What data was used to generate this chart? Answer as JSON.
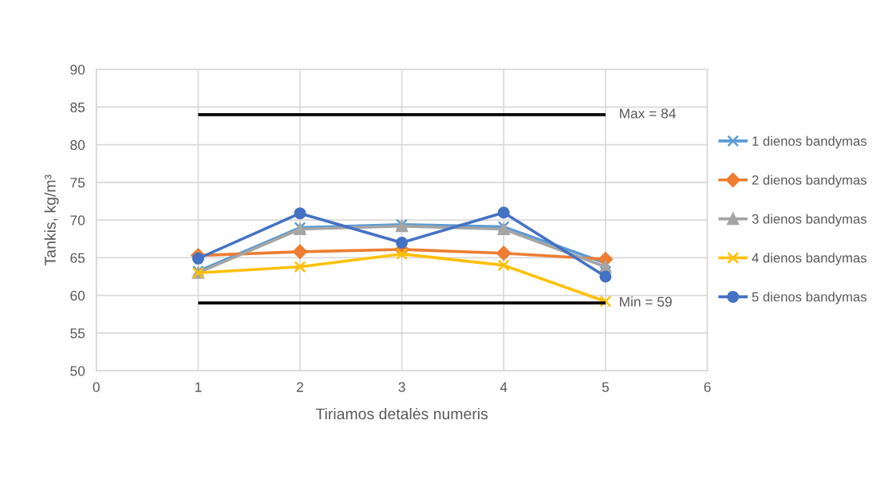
{
  "chart_data": {
    "type": "line",
    "xlabel": "Tiriamos detalės numeris",
    "ylabel": "Tankis, kg/m³",
    "x": [
      1,
      2,
      3,
      4,
      5
    ],
    "xlim": [
      0,
      6
    ],
    "xticks": [
      0,
      1,
      2,
      3,
      4,
      5,
      6
    ],
    "ylim": [
      50,
      90
    ],
    "yticks": [
      50,
      55,
      60,
      65,
      70,
      75,
      80,
      85,
      90
    ],
    "grid": true,
    "legend": "right",
    "line_style": "solid",
    "series": [
      {
        "name": "1 dienos bandymas",
        "color": "#5b9bd5",
        "marker": "cross",
        "values": [
          63.2,
          69.0,
          69.4,
          69.1,
          64.3
        ]
      },
      {
        "name": "2 dienos bandymas",
        "color": "#ed7d31",
        "marker": "diamond",
        "values": [
          65.3,
          65.8,
          66.1,
          65.6,
          64.8
        ]
      },
      {
        "name": "3 dienos bandymas",
        "color": "#a5a5a5",
        "marker": "triangle",
        "values": [
          63.0,
          68.8,
          69.2,
          68.8,
          63.8
        ]
      },
      {
        "name": "4 dienos bandymas",
        "color": "#ffc000",
        "marker": "cross",
        "values": [
          63.0,
          63.8,
          65.5,
          64.0,
          59.2
        ]
      },
      {
        "name": "5 dienos bandymas",
        "color": "#4472c4",
        "marker": "circle",
        "values": [
          64.9,
          70.9,
          67.0,
          71.0,
          62.5
        ]
      },
      {
        "color": "#000000",
        "marker": "none",
        "values": [
          84,
          84,
          84,
          84,
          84
        ]
      },
      {
        "color": "#000000",
        "marker": "none",
        "values": [
          59,
          59,
          59,
          59,
          59
        ]
      }
    ],
    "annotations": [
      {
        "text": "Max = 84",
        "x": 5,
        "y": 84
      },
      {
        "text": "Min = 59",
        "x": 5,
        "y": 59
      }
    ]
  }
}
